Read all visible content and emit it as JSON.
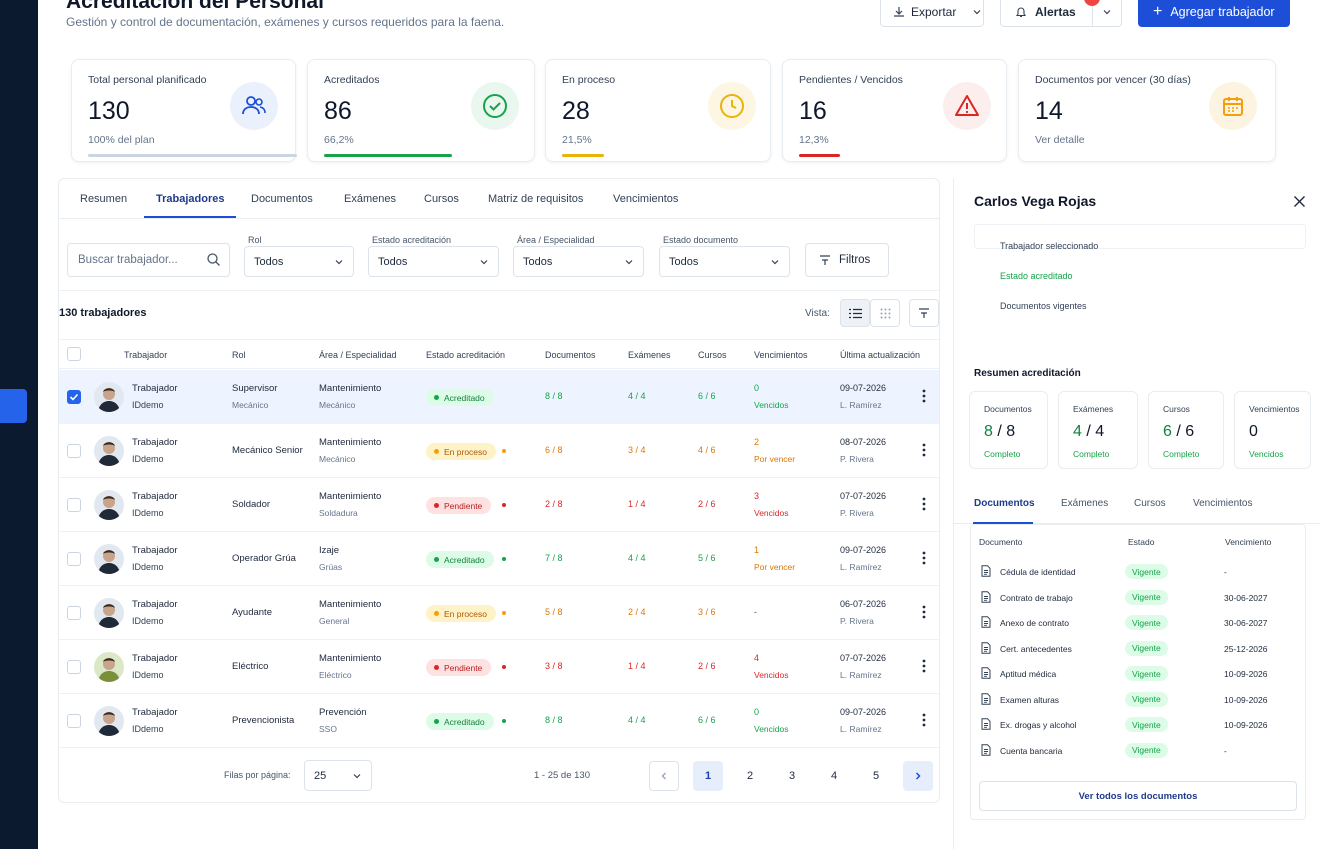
{
  "header": {
    "title": "Acreditación del Personal",
    "subtitle": "Gestión y control de documentación, exámenes y cursos requeridos para la faena.",
    "export_label": "Exportar",
    "alerts_label": "Alertas",
    "add_label": "Agregar trabajador"
  },
  "kpis": [
    {
      "label": "Total personal planificado",
      "value": "130",
      "sub": "100% del plan",
      "progress": 100,
      "color": "#cbd5e1"
    },
    {
      "label": "Acreditados",
      "value": "86",
      "sub": "66,2%",
      "progress": 66.2,
      "color": "#16a34a"
    },
    {
      "label": "En proceso",
      "value": "28",
      "sub": "21,5%",
      "progress": 21.5,
      "color": "#eab308"
    },
    {
      "label": "Pendientes / Vencidos",
      "value": "16",
      "sub": "12,3%",
      "progress": 12.3,
      "color": "#dc2626"
    },
    {
      "label": "Documentos por vencer (30 días)",
      "value": "14",
      "sub": "Ver detalle",
      "progress": 0,
      "color": "#f59e0b"
    }
  ],
  "tabs": [
    "Resumen",
    "Trabajadores",
    "Documentos",
    "Exámenes",
    "Cursos",
    "Matriz de requisitos",
    "Vencimientos"
  ],
  "filters": {
    "search_placeholder": "Buscar trabajador...",
    "rol_label": "Rol",
    "rol_value": "Todos",
    "estado_label": "Estado acreditación",
    "estado_value": "Todos",
    "area_label": "Área / Especialidad",
    "area_value": "Todos",
    "doc_label": "Estado documento",
    "doc_value": "Todos",
    "filters_button": "Filtros"
  },
  "table": {
    "count_label": "130 trabajadores",
    "vista_label": "Vista:",
    "headers": [
      "Trabajador",
      "Rol",
      "Área / Especialidad",
      "Estado acreditación",
      "Documentos",
      "Exámenes",
      "Cursos",
      "Vencimientos",
      "Última actualización"
    ],
    "rows": [
      {
        "name": "Trabajador",
        "id": "IDdemo",
        "rol": "Supervisor",
        "rol_sub": "Mecánico",
        "area": "Mantenimiento",
        "area_sub": "Mecánico",
        "estado": "Acreditado",
        "docs": "8 / 8",
        "exams": "4 / 4",
        "cursos": "6 / 6",
        "venc": "0",
        "venc_sub": "Vencidos",
        "fecha": "09-07-2026",
        "por": "L. Ramírez"
      },
      {
        "name": "Trabajador",
        "id": "IDdemo",
        "rol": "Mecánico Senior",
        "rol_sub": "",
        "area": "Mantenimiento",
        "area_sub": "Mecánico",
        "estado": "En proceso",
        "docs": "6 / 8",
        "exams": "3 / 4",
        "cursos": "4 / 6",
        "venc": "2",
        "venc_sub": "Por vencer",
        "fecha": "08-07-2026",
        "por": "P. Rivera"
      },
      {
        "name": "Trabajador",
        "id": "IDdemo",
        "rol": "Soldador",
        "rol_sub": "",
        "area": "Mantenimiento",
        "area_sub": "Soldadura",
        "estado": "Pendiente",
        "docs": "2 / 8",
        "exams": "1 / 4",
        "cursos": "2 / 6",
        "venc": "3",
        "venc_sub": "Vencidos",
        "fecha": "07-07-2026",
        "por": "P. Rivera"
      },
      {
        "name": "Trabajador",
        "id": "IDdemo",
        "rol": "Operador Grúa",
        "rol_sub": "",
        "area": "Izaje",
        "area_sub": "Grúas",
        "estado": "Acreditado",
        "docs": "7 / 8",
        "exams": "4 / 4",
        "cursos": "5 / 6",
        "venc": "1",
        "venc_sub": "Por vencer",
        "fecha": "09-07-2026",
        "por": "L. Ramírez"
      },
      {
        "name": "Trabajador",
        "id": "IDdemo",
        "rol": "Ayudante",
        "rol_sub": "",
        "area": "Mantenimiento",
        "area_sub": "General",
        "estado": "En proceso",
        "docs": "5 / 8",
        "exams": "2 / 4",
        "cursos": "3 / 6",
        "venc": "-",
        "venc_sub": "",
        "fecha": "06-07-2026",
        "por": "P. Rivera"
      },
      {
        "name": "Trabajador",
        "id": "IDdemo",
        "rol": "Eléctrico",
        "rol_sub": "",
        "area": "Mantenimiento",
        "area_sub": "Eléctrico",
        "estado": "Pendiente",
        "docs": "3 / 8",
        "exams": "1 / 4",
        "cursos": "2 / 6",
        "venc": "4",
        "venc_sub": "Vencidos",
        "fecha": "07-07-2026",
        "por": "L. Ramírez"
      },
      {
        "name": "Trabajador",
        "id": "IDdemo",
        "rol": "Prevencionista",
        "rol_sub": "",
        "area": "Prevención",
        "area_sub": "SSO",
        "estado": "Acreditado",
        "docs": "8 / 8",
        "exams": "4 / 4",
        "cursos": "6 / 6",
        "venc": "0",
        "venc_sub": "Vencidos",
        "fecha": "09-07-2026",
        "por": "L. Ramírez"
      }
    ]
  },
  "pagination": {
    "rows_label": "Filas por página:",
    "rows_value": "25",
    "range": "1 - 25 de 130",
    "pages": [
      "1",
      "2",
      "3",
      "4",
      "5"
    ]
  },
  "panel": {
    "name": "Carlos Vega Rojas",
    "info1": "Trabajador seleccionado",
    "info2": "Estado acreditado",
    "info3": "Documentos vigentes",
    "summary_title": "Resumen acreditación",
    "cards": [
      {
        "label": "Documentos",
        "a": "8",
        "b": "/ 8",
        "status": "Completo"
      },
      {
        "label": "Exámenes",
        "a": "4",
        "b": "/ 4",
        "status": "Completo"
      },
      {
        "label": "Cursos",
        "a": "6",
        "b": "/ 6",
        "status": "Completo"
      },
      {
        "label": "Vencimientos",
        "a": "0",
        "b": "",
        "status": "Vencidos"
      }
    ],
    "tabs": [
      "Documentos",
      "Exámenes",
      "Cursos",
      "Vencimientos"
    ],
    "doc_headers": [
      "Documento",
      "Estado",
      "Vencimiento"
    ],
    "docs": [
      {
        "name": "Cédula de identidad",
        "status": "Vigente",
        "date": "-"
      },
      {
        "name": "Contrato de trabajo",
        "status": "Vigente",
        "date": "30-06-2027"
      },
      {
        "name": "Anexo de contrato",
        "status": "Vigente",
        "date": "30-06-2027"
      },
      {
        "name": "Cert. antecedentes",
        "status": "Vigente",
        "date": "25-12-2026"
      },
      {
        "name": "Aptitud médica",
        "status": "Vigente",
        "date": "10-09-2026"
      },
      {
        "name": "Examen alturas",
        "status": "Vigente",
        "date": "10-09-2026"
      },
      {
        "name": "Ex. drogas y alcohol",
        "status": "Vigente",
        "date": "10-09-2026"
      },
      {
        "name": "Cuenta bancaria",
        "status": "Vigente",
        "date": "-"
      }
    ],
    "view_all": "Ver todos los documentos"
  },
  "colors": {
    "accent": "#1d4ed8",
    "success": "#16a34a",
    "warning": "#d97706",
    "danger": "#dc2626"
  }
}
